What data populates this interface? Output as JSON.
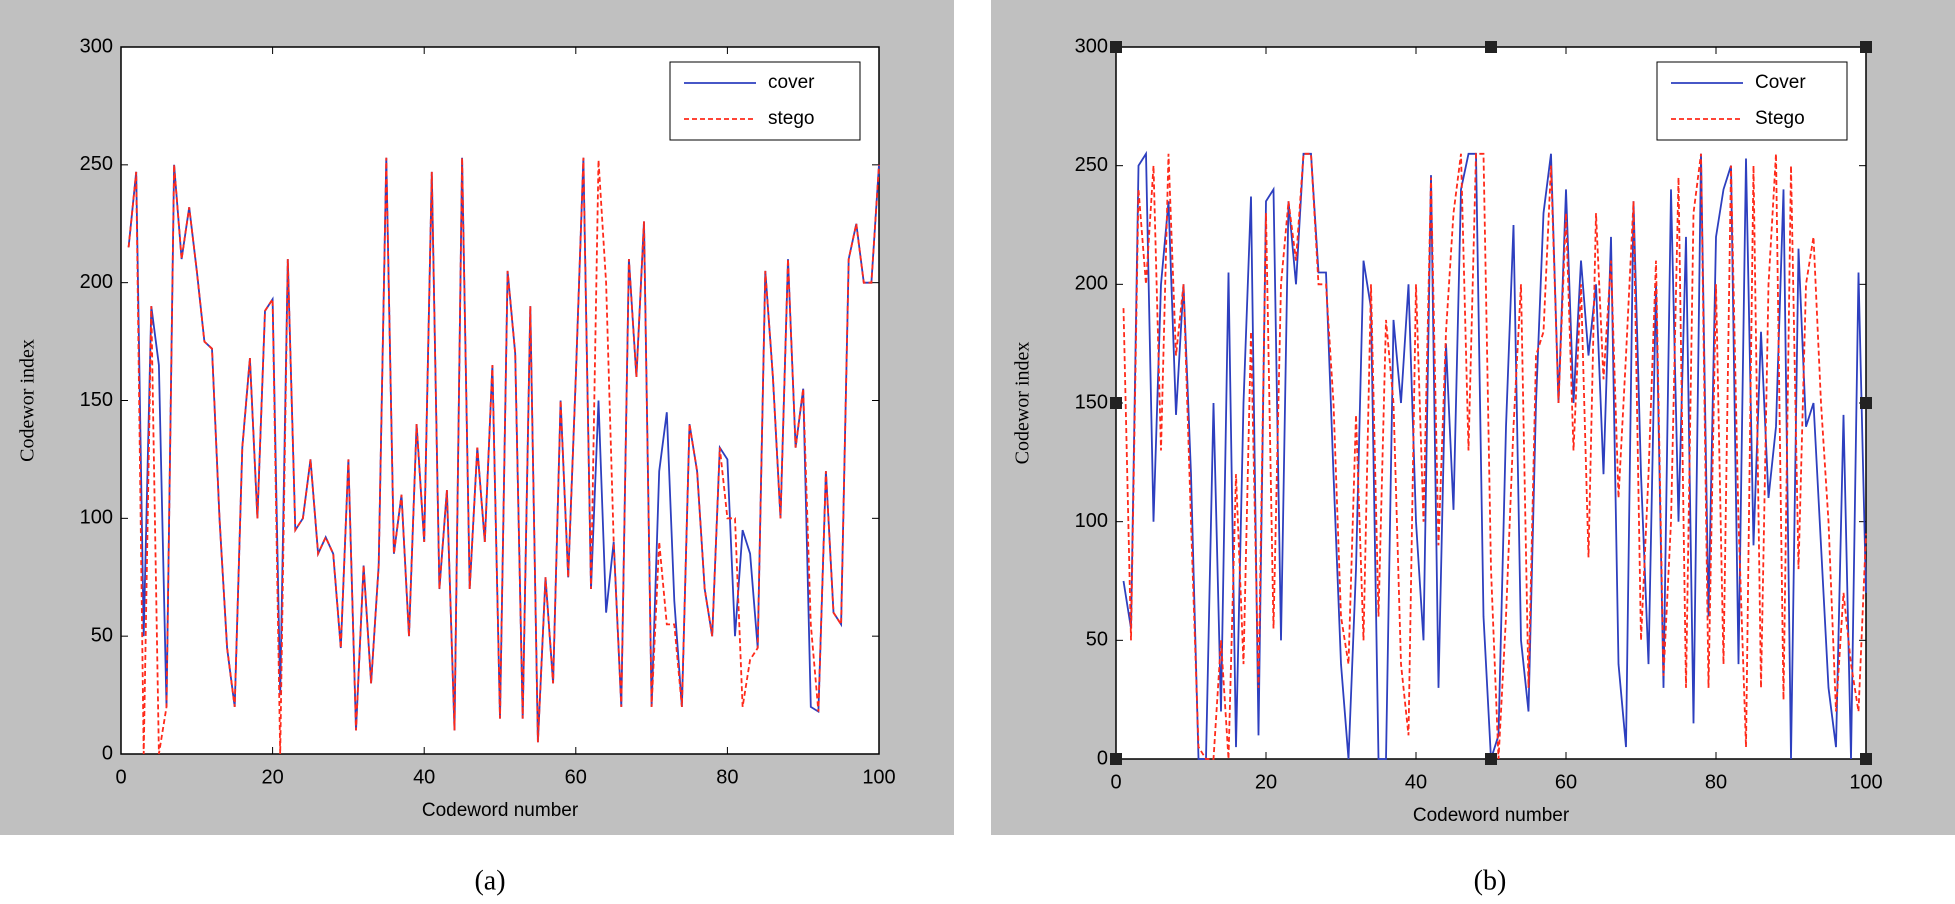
{
  "chart_data": [
    {
      "type": "line",
      "caption": "(a)",
      "xlabel": "Codeword number",
      "ylabel": "Codewor index",
      "x": [
        1,
        2,
        3,
        4,
        5,
        6,
        7,
        8,
        9,
        10,
        11,
        12,
        13,
        14,
        15,
        16,
        17,
        18,
        19,
        20,
        21,
        22,
        23,
        24,
        25,
        26,
        27,
        28,
        29,
        30,
        31,
        32,
        33,
        34,
        35,
        36,
        37,
        38,
        39,
        40,
        41,
        42,
        43,
        44,
        45,
        46,
        47,
        48,
        49,
        50,
        51,
        52,
        53,
        54,
        55,
        56,
        57,
        58,
        59,
        60,
        61,
        62,
        63,
        64,
        65,
        66,
        67,
        68,
        69,
        70,
        71,
        72,
        73,
        74,
        75,
        76,
        77,
        78,
        79,
        80,
        81,
        82,
        83,
        84,
        85,
        86,
        87,
        88,
        89,
        90,
        91,
        92,
        93,
        94,
        95,
        96,
        97,
        98,
        99,
        100
      ],
      "series": [
        {
          "name": "cover",
          "color": "#2d3fbf",
          "linestyle": "solid",
          "values": [
            215,
            247,
            50,
            190,
            165,
            20,
            250,
            210,
            232,
            205,
            175,
            172,
            100,
            45,
            20,
            130,
            168,
            100,
            188,
            193,
            25,
            210,
            95,
            100,
            125,
            85,
            92,
            85,
            45,
            125,
            10,
            80,
            30,
            80,
            253,
            85,
            110,
            50,
            140,
            90,
            247,
            70,
            112,
            10,
            253,
            70,
            130,
            90,
            165,
            15,
            205,
            170,
            15,
            190,
            5,
            75,
            30,
            150,
            75,
            160,
            253,
            70,
            150,
            60,
            90,
            20,
            210,
            160,
            226,
            20,
            120,
            145,
            65,
            20,
            140,
            120,
            70,
            50,
            130,
            125,
            50,
            95,
            85,
            45,
            205,
            160,
            100,
            210,
            130,
            155,
            20,
            18,
            120,
            60,
            55,
            210,
            225,
            200,
            200,
            250
          ]
        },
        {
          "name": "stego",
          "color": "#ff2a1a",
          "linestyle": "dashed",
          "values": [
            215,
            247,
            0,
            190,
            0,
            20,
            250,
            210,
            232,
            205,
            175,
            172,
            100,
            45,
            20,
            130,
            168,
            100,
            188,
            193,
            0,
            210,
            95,
            100,
            125,
            85,
            92,
            85,
            45,
            125,
            10,
            80,
            30,
            80,
            253,
            85,
            110,
            50,
            140,
            90,
            247,
            70,
            112,
            10,
            253,
            70,
            130,
            90,
            165,
            15,
            205,
            170,
            15,
            190,
            5,
            75,
            30,
            150,
            75,
            160,
            253,
            70,
            252,
            200,
            90,
            20,
            210,
            160,
            226,
            20,
            90,
            55,
            55,
            20,
            140,
            120,
            70,
            50,
            130,
            100,
            100,
            20,
            40,
            45,
            205,
            160,
            100,
            210,
            130,
            155,
            55,
            18,
            120,
            60,
            55,
            210,
            225,
            200,
            200,
            250
          ]
        }
      ],
      "xlim": [
        0,
        100
      ],
      "xticks": [
        0,
        20,
        40,
        60,
        80,
        100
      ],
      "ylim": [
        0,
        300
      ],
      "yticks": [
        0,
        50,
        100,
        150,
        200,
        250,
        300
      ],
      "legend": "upper right",
      "grid": false
    },
    {
      "type": "line",
      "caption": "(b)",
      "xlabel": "Codeword number",
      "ylabel": "Codewor index",
      "x": [
        1,
        2,
        3,
        4,
        5,
        6,
        7,
        8,
        9,
        10,
        11,
        12,
        13,
        14,
        15,
        16,
        17,
        18,
        19,
        20,
        21,
        22,
        23,
        24,
        25,
        26,
        27,
        28,
        29,
        30,
        31,
        32,
        33,
        34,
        35,
        36,
        37,
        38,
        39,
        40,
        41,
        42,
        43,
        44,
        45,
        46,
        47,
        48,
        49,
        50,
        51,
        52,
        53,
        54,
        55,
        56,
        57,
        58,
        59,
        60,
        61,
        62,
        63,
        64,
        65,
        66,
        67,
        68,
        69,
        70,
        71,
        72,
        73,
        74,
        75,
        76,
        77,
        78,
        79,
        80,
        81,
        82,
        83,
        84,
        85,
        86,
        87,
        88,
        89,
        90,
        91,
        92,
        93,
        94,
        95,
        96,
        97,
        98,
        99,
        100
      ],
      "series": [
        {
          "name": "Cover",
          "color": "#2d3fbf",
          "linestyle": "solid",
          "values": [
            75,
            55,
            250,
            255,
            100,
            200,
            235,
            145,
            200,
            120,
            0,
            0,
            150,
            20,
            205,
            5,
            150,
            237,
            10,
            235,
            240,
            50,
            235,
            200,
            255,
            255,
            205,
            205,
            120,
            40,
            0,
            80,
            210,
            190,
            0,
            0,
            185,
            150,
            200,
            100,
            50,
            246,
            30,
            175,
            105,
            240,
            255,
            255,
            60,
            0,
            10,
            140,
            225,
            50,
            20,
            150,
            230,
            255,
            150,
            240,
            150,
            210,
            170,
            200,
            120,
            220,
            40,
            5,
            235,
            120,
            40,
            200,
            30,
            240,
            100,
            220,
            15,
            255,
            60,
            220,
            240,
            250,
            40,
            253,
            90,
            180,
            110,
            140,
            240,
            0,
            215,
            140,
            150,
            90,
            30,
            5,
            145,
            0,
            205,
            70
          ]
        },
        {
          "name": "Stego",
          "color": "#ff2a1a",
          "linestyle": "dashed",
          "values": [
            190,
            50,
            240,
            200,
            250,
            130,
            255,
            170,
            200,
            100,
            5,
            0,
            0,
            50,
            0,
            120,
            40,
            180,
            30,
            230,
            55,
            200,
            235,
            210,
            255,
            255,
            200,
            200,
            150,
            60,
            40,
            145,
            50,
            200,
            60,
            185,
            150,
            40,
            10,
            200,
            100,
            245,
            90,
            180,
            230,
            255,
            130,
            255,
            255,
            80,
            0,
            60,
            140,
            200,
            30,
            170,
            180,
            250,
            150,
            230,
            130,
            200,
            85,
            230,
            160,
            210,
            110,
            170,
            235,
            50,
            120,
            210,
            35,
            100,
            245,
            30,
            230,
            255,
            30,
            200,
            40,
            250,
            100,
            5,
            250,
            30,
            200,
            255,
            25,
            250,
            80,
            200,
            220,
            150,
            100,
            20,
            70,
            40,
            20,
            95
          ]
        }
      ],
      "xlim": [
        0,
        100
      ],
      "xticks": [
        0,
        20,
        40,
        60,
        80,
        100
      ],
      "ylim": [
        0,
        300
      ],
      "yticks": [
        0,
        50,
        100,
        150,
        200,
        250,
        300
      ],
      "legend": "upper right",
      "grid": false
    }
  ]
}
